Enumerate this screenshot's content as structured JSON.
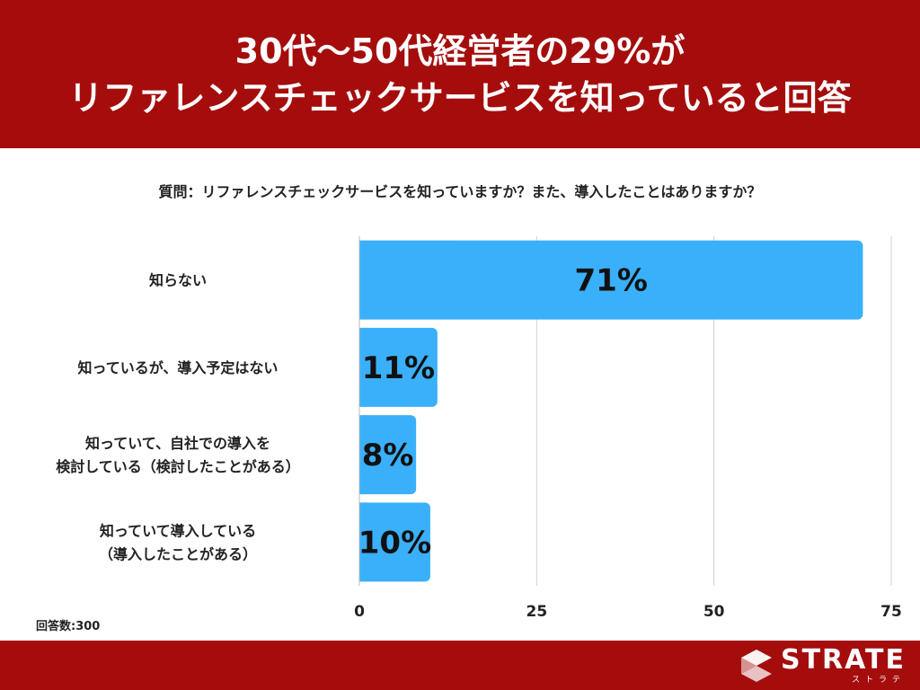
{
  "header": {
    "title_line1": "30代〜50代経営者の29%が",
    "title_line2": "リファレンスチェックサービスを知っていると回答"
  },
  "question": "質問：リファレンスチェックサービスを知っていますか？また、導入したことはありますか？",
  "respondents": "回答数:300",
  "colors": {
    "bar": "#3ab0fb",
    "header": "#a50d0d",
    "grid": "#d0d0d0"
  },
  "logo": {
    "brand": "STRATE",
    "sub": "ストラテ",
    "icon": "s-mark-icon"
  },
  "chart_data": {
    "type": "bar",
    "orientation": "horizontal",
    "categories": [
      [
        "知らない"
      ],
      [
        "知っているが、導入予定はない"
      ],
      [
        "知っていて、自社での導入を",
        "検討している（検討したことがある）"
      ],
      [
        "知っていて導入している",
        "（導入したことがある）"
      ]
    ],
    "values": [
      71,
      11,
      8,
      10
    ],
    "data_labels": [
      "71%",
      "11%",
      "8%",
      "10%"
    ],
    "xticks": [
      "0",
      "25",
      "50",
      "75"
    ],
    "xtick_values": [
      0,
      25,
      50,
      75
    ],
    "xlim": [
      0,
      75
    ],
    "grid": true,
    "title": "",
    "xlabel": "",
    "ylabel": ""
  }
}
